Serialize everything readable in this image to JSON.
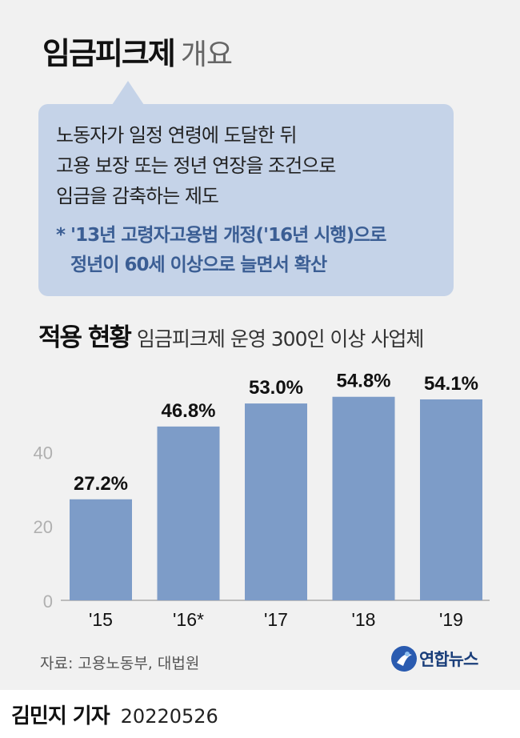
{
  "header": {
    "title_main": "임금피크제",
    "title_sub": "개요"
  },
  "bubble": {
    "lines": [
      "노동자가 일정 연령에 도달한 뒤",
      "고용 보장 또는 정년 연장을 조건으로",
      "임금을 감축하는 제도"
    ],
    "note_lines": [
      "* '13년 고령자고용법 개정('16년 시행)으로",
      "정년이 60세 이상으로 늘면서 확산"
    ]
  },
  "section": {
    "title": "적용 현황",
    "subtitle": "임금피크제 운영 300인 이상 사업체"
  },
  "chart_data": {
    "type": "bar",
    "categories": [
      "'15",
      "'16*",
      "'17",
      "'18",
      "'19"
    ],
    "values": [
      27.2,
      46.8,
      53.0,
      54.8,
      54.1
    ],
    "value_labels": [
      "27.2%",
      "46.8%",
      "53.0%",
      "54.8%",
      "54.1%"
    ],
    "y_ticks": [
      0,
      20,
      40
    ],
    "ylim": [
      0,
      55.7
    ],
    "bar_color": "#7d9cc8",
    "gridlines": false
  },
  "source": "자료: 고용노동부, 대법원",
  "logo": {
    "text": "연합뉴스"
  },
  "footer": {
    "reporter": "김민지 기자",
    "date": "20220526"
  }
}
